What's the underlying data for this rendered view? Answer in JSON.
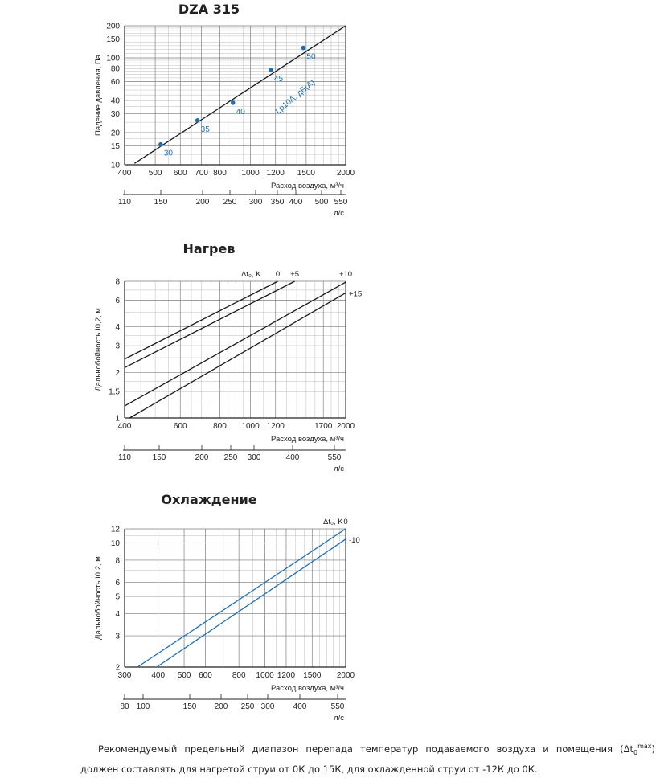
{
  "chart_data": [
    {
      "type": "line",
      "title": "DZA 315",
      "xscale": "log",
      "yscale": "log",
      "xlim": [
        400,
        2000
      ],
      "ylim": [
        10,
        200
      ],
      "xticks": [
        400,
        500,
        600,
        700,
        800,
        1000,
        1200,
        1500,
        2000
      ],
      "yticks": [
        10,
        15,
        20,
        30,
        40,
        60,
        80,
        100,
        150,
        200
      ],
      "ylabel": "Падение давления, Па",
      "xlabel": "Расход воздуха, м³/ч",
      "x2label": "л/с",
      "x2ticks": [
        "110",
        "150",
        "200",
        "250",
        "300",
        "350",
        "400",
        "500",
        "550"
      ],
      "series": [
        {
          "name": "Lp10A, дБ(A)",
          "color": "#1a1a1a",
          "x": [
            430,
            2000
          ],
          "y": [
            10.3,
            200
          ]
        }
      ],
      "markers": [
        {
          "label": "30",
          "x": 520,
          "y": 15.5
        },
        {
          "label": "35",
          "x": 680,
          "y": 26
        },
        {
          "label": "40",
          "x": 880,
          "y": 38
        },
        {
          "label": "45",
          "x": 1160,
          "y": 77
        },
        {
          "label": "50",
          "x": 1470,
          "y": 124
        }
      ]
    },
    {
      "type": "line",
      "title": "Нагрев",
      "xscale": "log",
      "yscale": "log",
      "xlim": [
        400,
        2000
      ],
      "ylim": [
        1,
        8
      ],
      "xticks": [
        400,
        600,
        800,
        1000,
        1200,
        1700,
        2000
      ],
      "yticks": [
        "1",
        "1,5",
        "2",
        "3",
        "4",
        "6",
        "8"
      ],
      "ylabel": "Дальнобойность I0,2, м",
      "xlabel": "Расход воздуха, м³/ч",
      "x2label": "л/с",
      "x2ticks": [
        "110",
        "150",
        "200",
        "250",
        "300",
        "400",
        "550"
      ],
      "legend_title": "Δt₀, K",
      "series": [
        {
          "name": "0",
          "x": [
            400,
            1220
          ],
          "y": [
            2.45,
            8
          ]
        },
        {
          "name": "+5",
          "x": [
            400,
            1380
          ],
          "y": [
            2.15,
            8
          ]
        },
        {
          "name": "+10",
          "x": [
            400,
            2000
          ],
          "y": [
            1.2,
            7.9
          ]
        },
        {
          "name": "+15",
          "x": [
            415,
            2000
          ],
          "y": [
            1,
            6.7
          ]
        }
      ]
    },
    {
      "type": "line",
      "title": "Охлаждение",
      "xscale": "log",
      "yscale": "log",
      "xlim": [
        300,
        2000
      ],
      "ylim": [
        2,
        12
      ],
      "xticks": [
        300,
        400,
        500,
        600,
        800,
        1000,
        1200,
        1500,
        2000
      ],
      "yticks": [
        2,
        3,
        4,
        5,
        6,
        8,
        10,
        12
      ],
      "ylabel": "Дальнобойность I0,2, м",
      "xlabel": "Расход воздуха, м³/ч",
      "x2label": "л/с",
      "x2ticks": [
        "80",
        "100",
        "150",
        "200",
        "250",
        "300",
        "400",
        "550"
      ],
      "legend_title": "Δt₀, K",
      "series": [
        {
          "name": "0",
          "color": "#1f6fb0",
          "x": [
            335,
            2000
          ],
          "y": [
            2,
            12
          ]
        },
        {
          "name": "-10",
          "color": "#1f6fb0",
          "x": [
            395,
            2000
          ],
          "y": [
            2,
            10.5
          ]
        }
      ]
    }
  ],
  "note": {
    "part1": "Рекомендуемый предельный диапазон перепада температур подаваемого воздуха и помещения (Δt",
    "sub": "0",
    "sup": "max",
    "part2": ") должен составлять для нагретой струи от 0К до 15К, для охлажденной струи от -12К до 0К."
  }
}
